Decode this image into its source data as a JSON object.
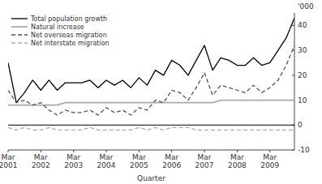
{
  "chart_data": {
    "type": "line",
    "xlabel": "Quarter",
    "ylabel": "'000",
    "categories": [
      "Mar\n2001",
      null,
      null,
      null,
      "Mar\n2002",
      null,
      null,
      null,
      "Mar\n2003",
      null,
      null,
      null,
      "Mar\n2004",
      null,
      null,
      null,
      "Mar\n2005",
      null,
      null,
      null,
      "Mar\n2006",
      null,
      null,
      null,
      "Mar\n2007",
      null,
      null,
      null,
      "Mar\n2008",
      null,
      null,
      null,
      "Mar\n2009",
      null,
      null,
      null
    ],
    "series": [
      {
        "name": "Total population growth",
        "color": "#000000",
        "line_style": "solid",
        "values": [
          25,
          9,
          13,
          18,
          14,
          18,
          14,
          17,
          17,
          17,
          18,
          15,
          18,
          16,
          18,
          15,
          19,
          16,
          22,
          20,
          26,
          24,
          20,
          26,
          32,
          22,
          27,
          26,
          24,
          24,
          27,
          24,
          25,
          30,
          35,
          43
        ]
      },
      {
        "name": "Natural increase",
        "color": "#aaaaaa",
        "line_style": "solid",
        "values": [
          8,
          8,
          8,
          8,
          8,
          8,
          8,
          9,
          9,
          9,
          9,
          9,
          9,
          9,
          9,
          9,
          9,
          9,
          9,
          9,
          9,
          9,
          9,
          9,
          9,
          9,
          10,
          10,
          10,
          10,
          10,
          10,
          10,
          10,
          10,
          10
        ]
      },
      {
        "name": "Net overseas migration",
        "color": "#555555",
        "line_style": "dashed",
        "values": [
          14,
          9,
          10,
          8,
          9,
          6,
          4,
          6,
          5,
          5,
          6,
          4,
          7,
          5,
          6,
          4,
          7,
          6,
          10,
          9,
          14,
          13,
          10,
          15,
          21,
          12,
          16,
          15,
          14,
          13,
          16,
          13,
          15,
          18,
          24,
          32
        ]
      },
      {
        "name": "Net interstate migration",
        "color": "#aaaaaa",
        "line_style": "dashed",
        "values": [
          -1,
          -2,
          -1,
          -2,
          -2,
          -1,
          -2,
          -2,
          -2,
          -2,
          -1,
          -2,
          -2,
          -2,
          -2,
          -2,
          -1,
          -2,
          -1,
          -2,
          -1,
          -1,
          -1,
          -2,
          -2,
          -2,
          -2,
          -2,
          -2,
          -2,
          -2,
          -2,
          -2,
          -2,
          -2,
          -2
        ]
      }
    ],
    "ylim": [
      -10,
      45
    ],
    "yticks": [
      -10,
      0,
      10,
      20,
      30,
      40
    ],
    "grid": false,
    "legend": "upper left"
  }
}
